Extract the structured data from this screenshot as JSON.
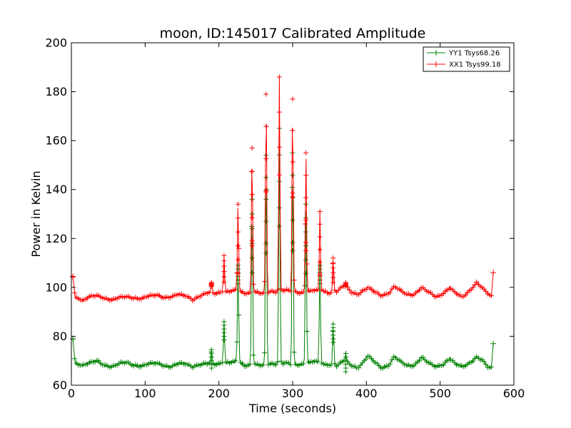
{
  "chart_data": {
    "type": "line",
    "title": "moon, ID:145017 Calibrated Amplitude",
    "xlabel": "Time (seconds)",
    "ylabel": "Power in Kelvin",
    "xlim": [
      0,
      600
    ],
    "ylim": [
      60,
      200
    ],
    "xticks": [
      0,
      100,
      200,
      300,
      400,
      500,
      600
    ],
    "yticks": [
      60,
      80,
      100,
      120,
      140,
      160,
      180,
      200
    ],
    "grid": false,
    "legend_position": "top-right",
    "marker": "+",
    "series": [
      {
        "name": "YY1 Tsys68.26",
        "color": "#008000",
        "baseline_points": [
          [
            2,
            79
          ],
          [
            5,
            69
          ],
          [
            10,
            68.5
          ],
          [
            15,
            68
          ],
          [
            20,
            68.7
          ],
          [
            27,
            69.5
          ],
          [
            35,
            70
          ],
          [
            45,
            68
          ],
          [
            55,
            67.5
          ],
          [
            65,
            69
          ],
          [
            75,
            69.4
          ],
          [
            85,
            68
          ],
          [
            95,
            67.8
          ],
          [
            105,
            68.8
          ],
          [
            115,
            69.2
          ],
          [
            125,
            68
          ],
          [
            135,
            67.5
          ],
          [
            145,
            69
          ],
          [
            155,
            68.8
          ],
          [
            165,
            67.5
          ],
          [
            175,
            68.5
          ],
          [
            185,
            69
          ],
          [
            195,
            68.5
          ],
          [
            205,
            69
          ],
          [
            215,
            69.4
          ],
          [
            225,
            69.8
          ],
          [
            235,
            68
          ],
          [
            250,
            68.5
          ],
          [
            260,
            68.2
          ],
          [
            270,
            68.8
          ],
          [
            280,
            68.4
          ],
          [
            290,
            69.2
          ],
          [
            300,
            68.6
          ],
          [
            310,
            68.3
          ],
          [
            320,
            69
          ],
          [
            330,
            70
          ],
          [
            340,
            68.5
          ],
          [
            350,
            68.3
          ],
          [
            360,
            67.8
          ],
          [
            368,
            70
          ],
          [
            374,
            69.5
          ],
          [
            380,
            68
          ],
          [
            388,
            67
          ],
          [
            395,
            69
          ],
          [
            402,
            72
          ],
          [
            410,
            70
          ],
          [
            420,
            67
          ],
          [
            430,
            68
          ],
          [
            438,
            72
          ],
          [
            445,
            70
          ],
          [
            455,
            68
          ],
          [
            465,
            68
          ],
          [
            475,
            71.5
          ],
          [
            485,
            69
          ],
          [
            495,
            67.5
          ],
          [
            505,
            68.5
          ],
          [
            513,
            71
          ],
          [
            520,
            69
          ],
          [
            530,
            67.5
          ],
          [
            540,
            69
          ],
          [
            550,
            71.5
          ],
          [
            558,
            70
          ],
          [
            565,
            67.5
          ],
          [
            570,
            67
          ]
        ],
        "peaks": [
          [
            190,
            74.5
          ],
          [
            207,
            86
          ],
          [
            226,
            109
          ],
          [
            245,
            136
          ],
          [
            264,
            154
          ],
          [
            282,
            165
          ],
          [
            300,
            155
          ],
          [
            318,
            134
          ],
          [
            337,
            109
          ],
          [
            355,
            85
          ],
          [
            372,
            73
          ]
        ],
        "end_marker": [
          572,
          77
        ]
      },
      {
        "name": "XX1 Tsys99.18",
        "color": "#ff0000",
        "baseline_points": [
          [
            2,
            104.5
          ],
          [
            5,
            96
          ],
          [
            10,
            95.5
          ],
          [
            15,
            94.5
          ],
          [
            20,
            95.5
          ],
          [
            27,
            96.5
          ],
          [
            35,
            96.7
          ],
          [
            45,
            95.5
          ],
          [
            55,
            94.8
          ],
          [
            65,
            96
          ],
          [
            75,
            96.3
          ],
          [
            85,
            95.5
          ],
          [
            95,
            95.3
          ],
          [
            105,
            96.6
          ],
          [
            115,
            97
          ],
          [
            125,
            95.8
          ],
          [
            135,
            96
          ],
          [
            145,
            97.3
          ],
          [
            155,
            96.6
          ],
          [
            165,
            94.9
          ],
          [
            175,
            96.5
          ],
          [
            185,
            98
          ],
          [
            195,
            97.5
          ],
          [
            205,
            98
          ],
          [
            215,
            98.4
          ],
          [
            225,
            99
          ],
          [
            235,
            97.5
          ],
          [
            250,
            98
          ],
          [
            260,
            97.5
          ],
          [
            270,
            98.4
          ],
          [
            280,
            98
          ],
          [
            290,
            99
          ],
          [
            300,
            98.6
          ],
          [
            310,
            97.7
          ],
          [
            320,
            98.2
          ],
          [
            330,
            99
          ],
          [
            340,
            98.6
          ],
          [
            350,
            97.6
          ],
          [
            360,
            98.3
          ],
          [
            368,
            100.5
          ],
          [
            374,
            100
          ],
          [
            380,
            98
          ],
          [
            388,
            97
          ],
          [
            395,
            98.5
          ],
          [
            402,
            100
          ],
          [
            410,
            98.5
          ],
          [
            420,
            96.5
          ],
          [
            430,
            97.5
          ],
          [
            438,
            100.5
          ],
          [
            445,
            99
          ],
          [
            455,
            97
          ],
          [
            465,
            97
          ],
          [
            475,
            100
          ],
          [
            485,
            98
          ],
          [
            495,
            96
          ],
          [
            505,
            97.5
          ],
          [
            513,
            100
          ],
          [
            520,
            98
          ],
          [
            530,
            96
          ],
          [
            540,
            98.5
          ],
          [
            550,
            102
          ],
          [
            558,
            99.5
          ],
          [
            565,
            97.5
          ],
          [
            570,
            96
          ]
        ],
        "peaks": [
          [
            190,
            102
          ],
          [
            207,
            113
          ],
          [
            226,
            134
          ],
          [
            245,
            157
          ],
          [
            264,
            179
          ],
          [
            282,
            186
          ],
          [
            300,
            177
          ],
          [
            318,
            155
          ],
          [
            337,
            131
          ],
          [
            355,
            112
          ],
          [
            372,
            102
          ]
        ],
        "end_marker": [
          572,
          106
        ]
      }
    ]
  }
}
